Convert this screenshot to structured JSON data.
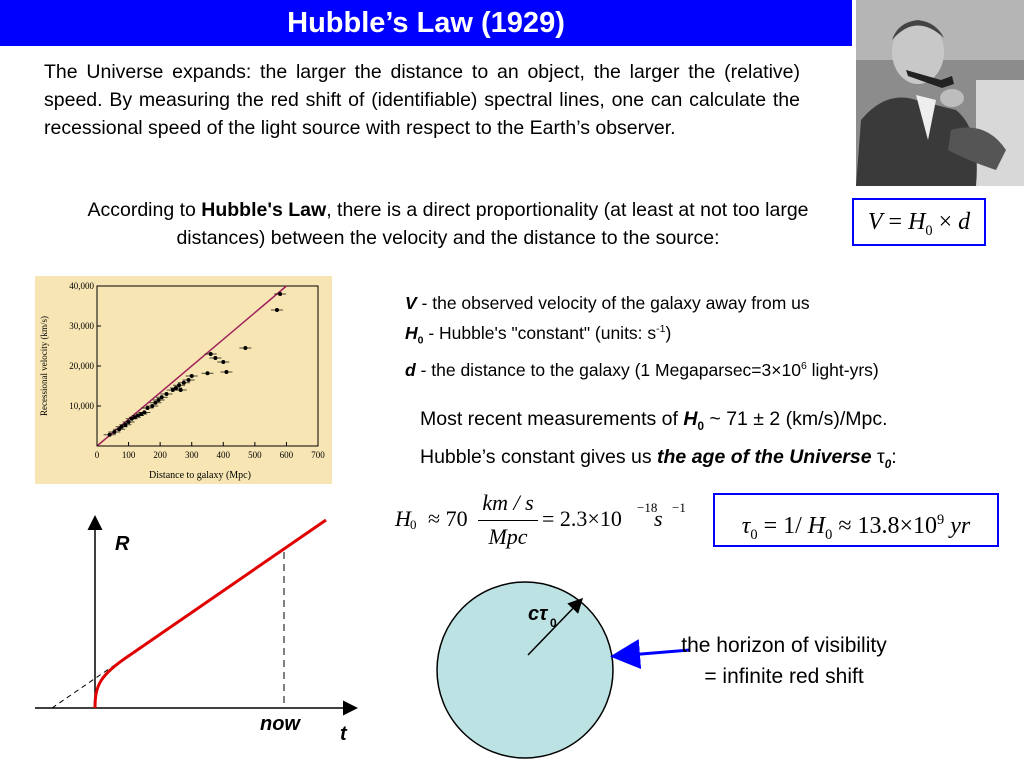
{
  "title": "Hubble’s Law (1929)",
  "intro": "The Universe expands: the larger the distance to an object, the larger the (relative) speed. By measuring the red shift of (identifiable) spectral lines, one can calculate the recessional speed of the light source with respect to the Earth’s observer.",
  "law": {
    "prefix": "According to ",
    "bold": "Hubble's Law",
    "suffix": ", there is a direct proportionality (at least at not too large distances) between the velocity and the distance to the source:"
  },
  "formula": {
    "lhs": "V",
    "eq": " = ",
    "h": "H",
    "h_sub": "0",
    "times": " × ",
    "d": "d"
  },
  "definitions": [
    {
      "sym": "V",
      "sub": "",
      "text": " - the observed velocity of the galaxy away from us",
      "sup": "",
      "tail": ""
    },
    {
      "sym": "H",
      "sub": "0",
      "text": " - Hubble's \"constant\" (units: s",
      "sup": "-1",
      "tail": ")"
    },
    {
      "sym": "d",
      "sub": "",
      "text": "  - the distance to the galaxy (1 Megaparsec=3×10",
      "sup": "6",
      "tail": " light-yrs)"
    }
  ],
  "recent": {
    "line1_pre": "Most recent measurements of ",
    "line1_sym": "H",
    "line1_sub": "0",
    "line1_post": " ~ 71 ± 2 (km/s)/Mpc.",
    "line2_pre": "Hubble’s constant gives us ",
    "line2_bold": "the age of the Universe",
    "line2_tau": " τ",
    "line2_sub": "0",
    "line2_post": ":"
  },
  "h0_equation": {
    "h": "H",
    "h_sub": "0",
    "approx": "≈ 70",
    "num": "km / s",
    "den": "Mpc",
    "rhs": "= 2.3×10",
    "exp": "−18",
    "unit": " s",
    "unit_exp": "−1"
  },
  "tau_equation": {
    "tau": "τ",
    "tau_sub": "0",
    "mid": " = 1/ ",
    "h": "H",
    "h_sub": "0",
    "rhs": " ≈ 13.8×10",
    "exp": "9",
    "unit": " yr"
  },
  "r_plot": {
    "y_label": "R",
    "x_label": "t",
    "now_label": "now"
  },
  "circle": {
    "label": "cτ",
    "label_sub": "0",
    "fill": "#bce2e3"
  },
  "horizon_label": "the horizon of visibility = infinite red shift",
  "chart_data": {
    "type": "scatter",
    "xlabel": "Distance to galaxy (Mpc)",
    "ylabel": "Recessional velocity (km/s)",
    "xlim": [
      0,
      700
    ],
    "ylim": [
      0,
      40000
    ],
    "x_ticks": [
      "0",
      "100",
      "200",
      "300",
      "400",
      "500",
      "600",
      "700"
    ],
    "y_ticks": [
      "10,000",
      "20,000",
      "30,000",
      "40,000"
    ],
    "points": [
      [
        40,
        2800
      ],
      [
        55,
        3500
      ],
      [
        70,
        4200
      ],
      [
        78,
        4800
      ],
      [
        90,
        5300
      ],
      [
        100,
        6000
      ],
      [
        110,
        6800
      ],
      [
        120,
        7200
      ],
      [
        130,
        7600
      ],
      [
        140,
        8000
      ],
      [
        150,
        8400
      ],
      [
        160,
        9500
      ],
      [
        175,
        10000
      ],
      [
        185,
        10800
      ],
      [
        195,
        11500
      ],
      [
        205,
        12200
      ],
      [
        220,
        13000
      ],
      [
        240,
        14000
      ],
      [
        250,
        14500
      ],
      [
        260,
        15200
      ],
      [
        265,
        14000
      ],
      [
        275,
        15800
      ],
      [
        290,
        16500
      ],
      [
        300,
        17500
      ],
      [
        350,
        18200
      ],
      [
        360,
        23000
      ],
      [
        375,
        22000
      ],
      [
        400,
        21000
      ],
      [
        410,
        18500
      ],
      [
        470,
        24500
      ],
      [
        570,
        34000
      ],
      [
        580,
        38000
      ]
    ],
    "fit": [
      [
        0,
        0
      ],
      [
        600,
        40000
      ]
    ],
    "background": "#f7e6b4",
    "fit_color": "#a0205a"
  },
  "colors": {
    "title_bg": "#0000ff",
    "accent_red": "#e00000",
    "box_border": "#0000ff"
  }
}
